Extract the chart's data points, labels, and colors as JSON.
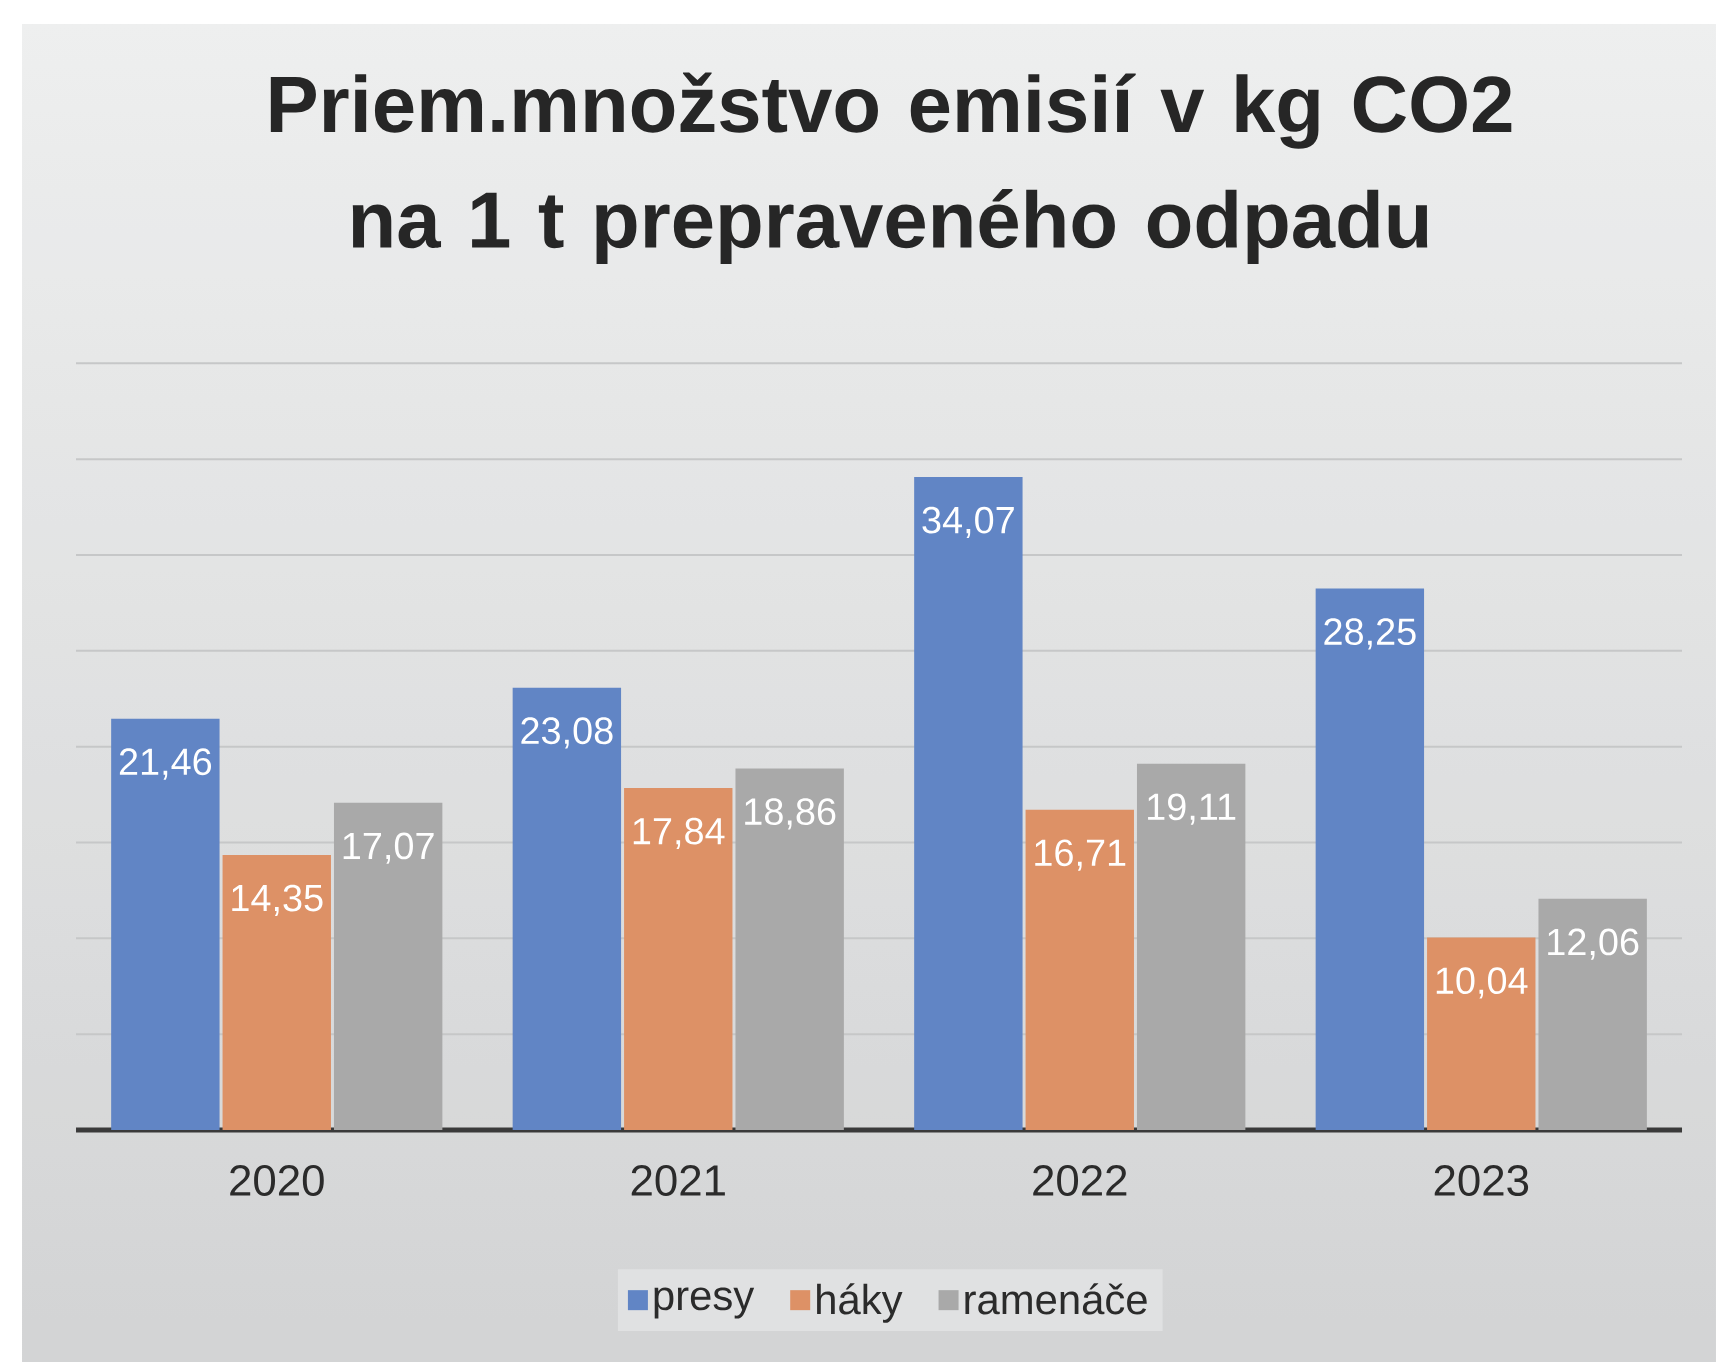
{
  "chart_data": {
    "type": "bar",
    "title": "Priem.množstvo emisií v kg CO2 na 1 t prepraveného odpadu",
    "categories": [
      "2020",
      "2021",
      "2022",
      "2023"
    ],
    "series": [
      {
        "name": "presy",
        "color": "#6185c5",
        "values": [
          21.46,
          23.08,
          34.07,
          28.25
        ],
        "value_labels": [
          "21,46",
          "23,08",
          "34,07",
          "28,25"
        ]
      },
      {
        "name": "háky",
        "color": "#dd9166",
        "values": [
          14.35,
          17.84,
          16.71,
          10.04
        ],
        "value_labels": [
          "14,35",
          "17,84",
          "16,71",
          "10,04"
        ]
      },
      {
        "name": "ramenáče",
        "color": "#a9a9a9",
        "values": [
          17.07,
          18.86,
          19.11,
          12.06
        ],
        "value_labels": [
          "17,07",
          "18,86",
          "19,11",
          "12,06"
        ]
      }
    ],
    "ylim": [
      0,
      40
    ],
    "yticks": [
      {
        "value": 0,
        "label": null
      },
      {
        "value": 5,
        "label": null
      },
      {
        "value": 10,
        "label": null
      },
      {
        "value": 15,
        "label": null
      },
      {
        "value": 20,
        "label": null
      },
      {
        "value": 25,
        "label": null
      },
      {
        "value": 30,
        "label": null
      },
      {
        "value": 35,
        "label": null
      },
      {
        "value": 40,
        "label": null
      }
    ],
    "grid": "y",
    "legend": "bottom",
    "tick_labels": "x"
  }
}
